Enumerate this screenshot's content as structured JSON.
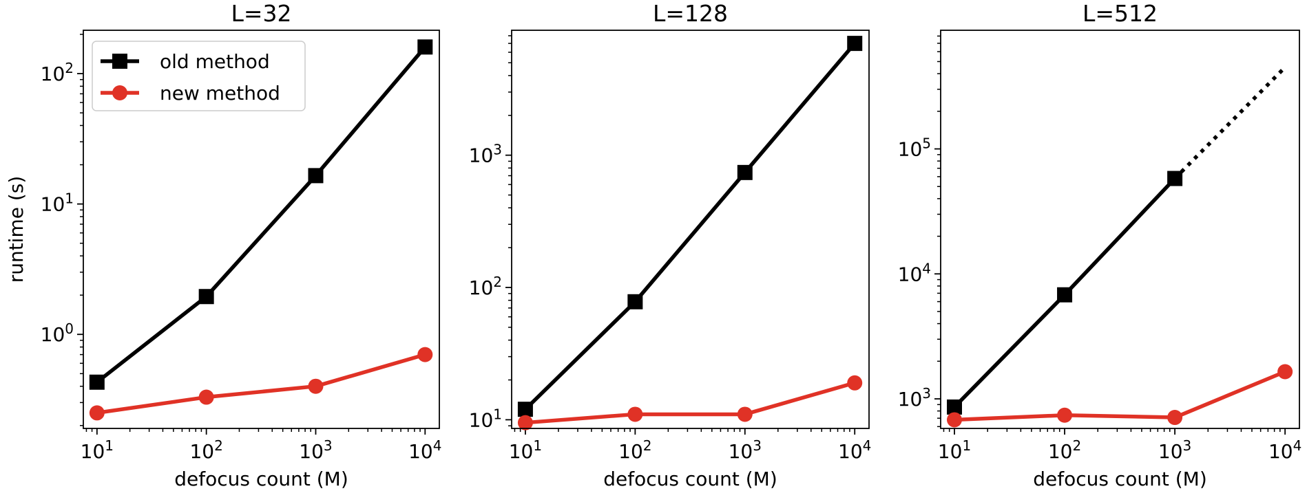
{
  "colors": {
    "old_method": "#000000",
    "new_method": "#e03226",
    "axes": "#000000",
    "background": "#ffffff"
  },
  "legend": {
    "placement": "upper-left",
    "panel": 0,
    "entries": [
      "old method",
      "new method"
    ]
  },
  "chart_data": [
    {
      "type": "line",
      "title": "L=32",
      "xlabel": "defocus count (M)",
      "ylabel": "runtime (s)",
      "xscale": "log",
      "yscale": "log",
      "xlim": [
        7.5,
        13500
      ],
      "ylim": [
        0.19,
        215
      ],
      "xticks": [
        "10^1",
        "10^2",
        "10^3",
        "10^4"
      ],
      "yticks": [
        "10^0",
        "10^1",
        "10^2"
      ],
      "grid": false,
      "x": [
        10,
        100,
        1000,
        10000
      ],
      "series": [
        {
          "name": "old method",
          "marker": "square",
          "values": [
            0.43,
            1.95,
            16.5,
            160
          ]
        },
        {
          "name": "new method",
          "marker": "circle",
          "values": [
            0.25,
            0.33,
            0.4,
            0.7
          ]
        }
      ]
    },
    {
      "type": "line",
      "title": "L=128",
      "xlabel": "defocus count (M)",
      "ylabel": "",
      "xscale": "log",
      "yscale": "log",
      "xlim": [
        7.5,
        13500
      ],
      "ylim": [
        8.6,
        8800
      ],
      "xticks": [
        "10^1",
        "10^2",
        "10^3",
        "10^4"
      ],
      "yticks": [
        "10^1",
        "10^2",
        "10^3"
      ],
      "grid": false,
      "x": [
        10,
        100,
        1000,
        10000
      ],
      "series": [
        {
          "name": "old method",
          "marker": "square",
          "values": [
            12,
            78,
            740,
            7000
          ]
        },
        {
          "name": "new method",
          "marker": "circle",
          "values": [
            9.5,
            11,
            11,
            19
          ]
        }
      ]
    },
    {
      "type": "line",
      "title": "L=512",
      "xlabel": "defocus count (M)",
      "ylabel": "",
      "xscale": "log",
      "yscale": "log",
      "xlim": [
        7.5,
        13500
      ],
      "ylim": [
        580,
        890000
      ],
      "xticks": [
        "10^1",
        "10^2",
        "10^3",
        "10^4"
      ],
      "yticks": [
        "10^3",
        "10^4",
        "10^5"
      ],
      "grid": false,
      "x": [
        10,
        100,
        1000,
        10000
      ],
      "series": [
        {
          "name": "old method",
          "marker": "square",
          "values": [
            860,
            6800,
            58000,
            null
          ]
        },
        {
          "name": "new method",
          "marker": "circle",
          "values": [
            680,
            740,
            710,
            1650
          ]
        }
      ],
      "extrapolation": {
        "series": "old method",
        "style": "dotted",
        "x": [
          1000,
          10000
        ],
        "values": [
          58000,
          450000
        ]
      }
    }
  ]
}
